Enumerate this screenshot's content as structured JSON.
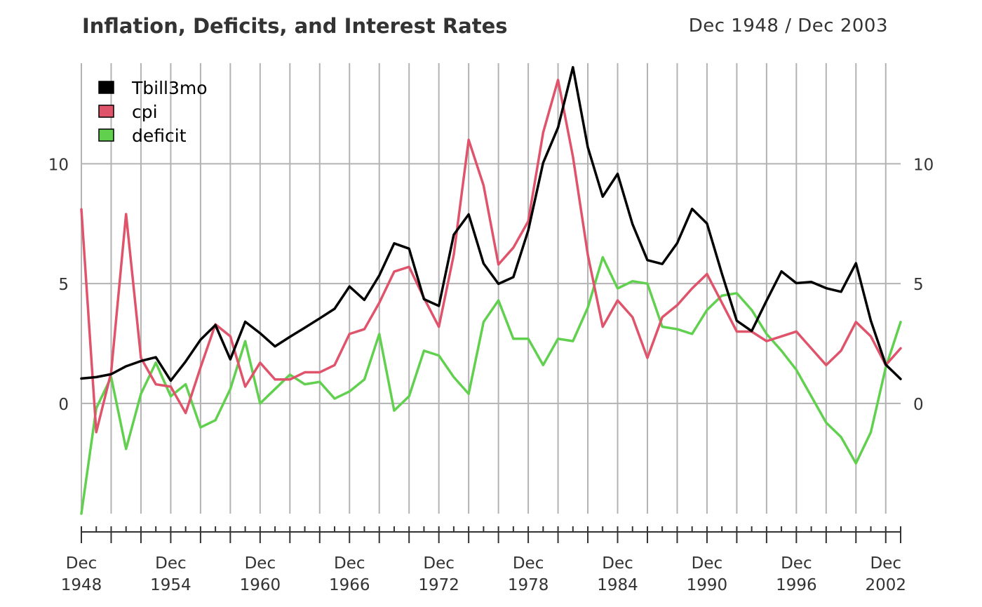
{
  "chart_data": {
    "type": "line",
    "title": "Inflation, Deficits, and Interest Rates",
    "date_range": "Dec 1948 / Dec 2003",
    "x": [
      1948,
      1949,
      1950,
      1951,
      1952,
      1953,
      1954,
      1955,
      1956,
      1957,
      1958,
      1959,
      1960,
      1961,
      1962,
      1963,
      1964,
      1965,
      1966,
      1967,
      1968,
      1969,
      1970,
      1971,
      1972,
      1973,
      1974,
      1975,
      1976,
      1977,
      1978,
      1979,
      1980,
      1981,
      1982,
      1983,
      1984,
      1985,
      1986,
      1987,
      1988,
      1989,
      1990,
      1991,
      1992,
      1993,
      1994,
      1995,
      1996,
      1997,
      1998,
      1999,
      2000,
      2001,
      2002,
      2003
    ],
    "x_tick_labels": [
      {
        "x": 1948,
        "line1": "Dec",
        "line2": "1948"
      },
      {
        "x": 1954,
        "line1": "Dec",
        "line2": "1954"
      },
      {
        "x": 1960,
        "line1": "Dec",
        "line2": "1960"
      },
      {
        "x": 1966,
        "line1": "Dec",
        "line2": "1966"
      },
      {
        "x": 1972,
        "line1": "Dec",
        "line2": "1972"
      },
      {
        "x": 1978,
        "line1": "Dec",
        "line2": "1978"
      },
      {
        "x": 1984,
        "line1": "Dec",
        "line2": "1984"
      },
      {
        "x": 1990,
        "line1": "Dec",
        "line2": "1990"
      },
      {
        "x": 1996,
        "line1": "Dec",
        "line2": "1996"
      },
      {
        "x": 2002,
        "line1": "Dec",
        "line2": "2002"
      }
    ],
    "y_ticks": [
      0,
      5,
      10
    ],
    "ylim": [
      -4.6,
      14.2
    ],
    "xlim": [
      1948,
      2003
    ],
    "grid": true,
    "legend_position": "top-left",
    "series": [
      {
        "name": "Tbill3mo",
        "color": "#000000",
        "values": [
          1.04,
          1.1,
          1.22,
          1.55,
          1.77,
          1.93,
          0.95,
          1.75,
          2.66,
          3.27,
          1.84,
          3.41,
          2.93,
          2.38,
          2.78,
          3.16,
          3.55,
          3.95,
          4.88,
          4.32,
          5.34,
          6.68,
          6.46,
          4.35,
          4.07,
          7.04,
          7.89,
          5.84,
          4.99,
          5.27,
          7.22,
          10.04,
          11.51,
          14.03,
          10.69,
          8.63,
          9.58,
          7.48,
          5.98,
          5.82,
          6.69,
          8.12,
          7.51,
          5.42,
          3.45,
          3.02,
          4.29,
          5.51,
          5.02,
          5.07,
          4.81,
          4.66,
          5.85,
          3.45,
          1.62,
          1.02
        ]
      },
      {
        "name": "cpi",
        "color": "#DF536B",
        "values": [
          8.1,
          -1.2,
          1.3,
          7.9,
          1.9,
          0.8,
          0.7,
          -0.4,
          1.5,
          3.3,
          2.8,
          0.7,
          1.7,
          1.0,
          1.0,
          1.3,
          1.3,
          1.6,
          2.9,
          3.1,
          4.2,
          5.5,
          5.7,
          4.4,
          3.2,
          6.2,
          11.0,
          9.1,
          5.8,
          6.5,
          7.6,
          11.3,
          13.5,
          10.3,
          6.2,
          3.2,
          4.3,
          3.6,
          1.9,
          3.6,
          4.1,
          4.8,
          5.4,
          4.2,
          3.0,
          3.0,
          2.6,
          2.8,
          3.0,
          2.3,
          1.6,
          2.2,
          3.4,
          2.8,
          1.6,
          2.3
        ]
      },
      {
        "name": "deficit",
        "color": "#61D04F",
        "values": [
          -4.6,
          -0.2,
          1.1,
          -1.9,
          0.4,
          1.7,
          0.3,
          0.8,
          -1.0,
          -0.7,
          0.6,
          2.6,
          0.0,
          0.6,
          1.2,
          0.8,
          0.9,
          0.2,
          0.5,
          1.0,
          2.9,
          -0.3,
          0.3,
          2.2,
          2.0,
          1.1,
          0.4,
          3.4,
          4.3,
          2.7,
          2.7,
          1.6,
          2.7,
          2.6,
          4.0,
          6.1,
          4.8,
          5.1,
          5.0,
          3.2,
          3.1,
          2.9,
          3.9,
          4.5,
          4.6,
          3.9,
          2.9,
          2.2,
          1.4,
          0.3,
          -0.8,
          -1.4,
          -2.5,
          -1.2,
          1.5,
          3.4
        ]
      }
    ]
  }
}
